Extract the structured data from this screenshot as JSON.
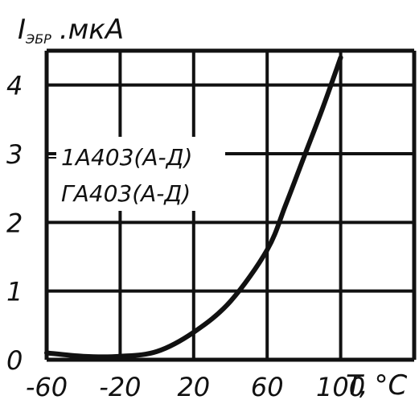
{
  "chart_data": {
    "type": "line",
    "ylabel_main": "I",
    "ylabel_sub": "ЭБР",
    "ylabel_unit": ".мкА",
    "xlabel_main": "T,",
    "xlabel_unit": "°С",
    "x_ticks": [
      "-60",
      "-20",
      "20",
      "60",
      "100"
    ],
    "y_ticks": [
      "0",
      "1",
      "2",
      "3",
      "4"
    ],
    "xlim": [
      -60,
      140
    ],
    "ylim": [
      0,
      4.5
    ],
    "grid": true,
    "annotation_line1": "1А403(А-Д)",
    "annotation_line2": "ГА403(А-Д)",
    "series": [
      {
        "x": [
          -60,
          -40,
          -20,
          0,
          20,
          40,
          60,
          70,
          80,
          90,
          100
        ],
        "y": [
          0.1,
          0.05,
          0.05,
          0.12,
          0.4,
          0.85,
          1.6,
          2.25,
          2.95,
          3.65,
          4.4
        ]
      }
    ]
  }
}
